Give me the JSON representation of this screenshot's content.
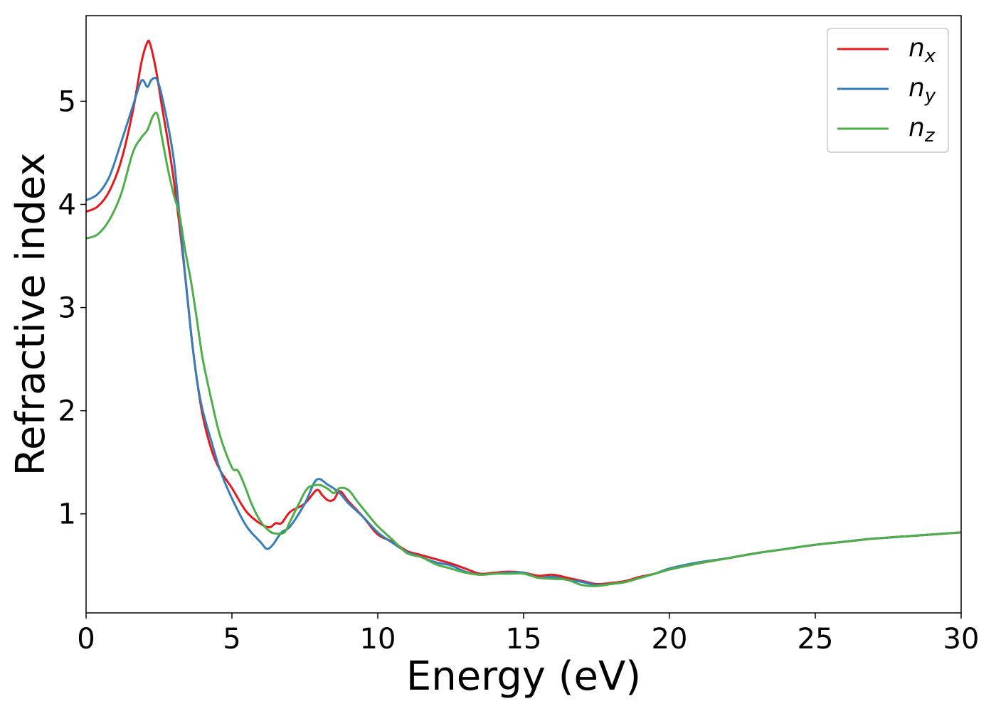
{
  "chart_data": {
    "type": "line",
    "title": "",
    "xlabel": "Energy (eV)",
    "ylabel": "Refractive index",
    "xlim": [
      0,
      30
    ],
    "ylim": [
      0.04,
      5.83
    ],
    "xticks": [
      0,
      5,
      10,
      15,
      20,
      25,
      30
    ],
    "yticks": [
      1,
      2,
      3,
      4,
      5
    ],
    "grid": false,
    "legend_position": "top-right",
    "series": [
      {
        "name": "n",
        "subscript": "x",
        "color": "#e41a1c",
        "x": [
          0,
          0.4,
          0.8,
          1.2,
          1.6,
          1.9,
          2.1,
          2.2,
          2.4,
          2.6,
          2.8,
          3.0,
          3.2,
          3.4,
          3.6,
          3.8,
          4.0,
          4.3,
          4.6,
          5.0,
          5.5,
          6.0,
          6.3,
          6.5,
          6.7,
          7.0,
          7.5,
          7.9,
          8.1,
          8.3,
          8.5,
          8.7,
          9.0,
          9.5,
          10.0,
          10.5,
          11.0,
          11.5,
          12.0,
          12.5,
          13.0,
          13.5,
          14.0,
          14.5,
          15.0,
          15.5,
          16.0,
          16.5,
          17.0,
          17.5,
          18.0,
          18.5,
          19.0,
          19.5,
          20,
          21,
          22,
          23,
          24,
          25,
          26,
          27,
          28,
          29,
          30
        ],
        "y": [
          3.93,
          3.98,
          4.13,
          4.42,
          4.9,
          5.38,
          5.57,
          5.55,
          5.3,
          4.95,
          4.62,
          4.25,
          3.8,
          3.3,
          2.75,
          2.3,
          1.95,
          1.62,
          1.42,
          1.25,
          1.02,
          0.9,
          0.87,
          0.91,
          0.91,
          1.02,
          1.1,
          1.23,
          1.18,
          1.13,
          1.14,
          1.22,
          1.12,
          0.97,
          0.8,
          0.73,
          0.64,
          0.6,
          0.56,
          0.52,
          0.47,
          0.42,
          0.43,
          0.44,
          0.43,
          0.4,
          0.41,
          0.38,
          0.35,
          0.32,
          0.33,
          0.35,
          0.39,
          0.42,
          0.46,
          0.52,
          0.57,
          0.62,
          0.66,
          0.7,
          0.73,
          0.76,
          0.78,
          0.8,
          0.82
        ]
      },
      {
        "name": "n",
        "subscript": "y",
        "color": "#377eb8",
        "x": [
          0,
          0.4,
          0.8,
          1.2,
          1.6,
          1.9,
          2.1,
          2.25,
          2.45,
          2.7,
          3.0,
          3.2,
          3.4,
          3.6,
          3.8,
          4.0,
          4.3,
          4.6,
          5.0,
          5.5,
          6.0,
          6.2,
          6.4,
          6.7,
          7.0,
          7.5,
          7.9,
          8.3,
          8.7,
          9.0,
          9.5,
          10.0,
          10.5,
          11.0,
          11.5,
          12.0,
          12.5,
          13.0,
          13.5,
          14.0,
          14.5,
          15.0,
          15.5,
          16.0,
          16.5,
          17.0,
          17.5,
          18.0,
          18.5,
          19.0,
          19.5,
          20,
          21,
          22,
          23,
          24,
          25,
          26,
          27,
          28,
          29,
          30
        ],
        "y": [
          4.04,
          4.1,
          4.27,
          4.6,
          4.95,
          5.2,
          5.14,
          5.21,
          5.2,
          4.92,
          4.45,
          3.9,
          3.3,
          2.75,
          2.3,
          2.0,
          1.7,
          1.42,
          1.15,
          0.88,
          0.72,
          0.66,
          0.7,
          0.82,
          0.88,
          1.1,
          1.33,
          1.28,
          1.2,
          1.1,
          0.97,
          0.82,
          0.72,
          0.63,
          0.58,
          0.53,
          0.5,
          0.44,
          0.41,
          0.42,
          0.43,
          0.43,
          0.38,
          0.39,
          0.36,
          0.34,
          0.31,
          0.32,
          0.34,
          0.38,
          0.42,
          0.47,
          0.53,
          0.57,
          0.62,
          0.66,
          0.7,
          0.73,
          0.76,
          0.78,
          0.8,
          0.82
        ]
      },
      {
        "name": "n",
        "subscript": "z",
        "color": "#4daf4a",
        "x": [
          0,
          0.4,
          0.8,
          1.2,
          1.6,
          1.9,
          2.1,
          2.3,
          2.45,
          2.6,
          2.8,
          3.0,
          3.2,
          3.4,
          3.6,
          3.8,
          4.0,
          4.3,
          4.6,
          5.0,
          5.2,
          5.4,
          5.7,
          6.0,
          6.3,
          6.5,
          6.8,
          7.0,
          7.3,
          7.6,
          8.0,
          8.3,
          8.5,
          8.7,
          9.0,
          9.3,
          9.7,
          10.0,
          10.5,
          11.0,
          11.5,
          12.0,
          12.5,
          13.0,
          13.5,
          14.0,
          14.5,
          15.0,
          15.5,
          16.0,
          16.5,
          17.0,
          17.5,
          18.0,
          18.5,
          19.0,
          19.5,
          20,
          21,
          22,
          23,
          24,
          25,
          26,
          27,
          28,
          29,
          30
        ],
        "y": [
          3.67,
          3.71,
          3.85,
          4.1,
          4.5,
          4.65,
          4.72,
          4.86,
          4.87,
          4.65,
          4.35,
          4.1,
          3.9,
          3.55,
          3.25,
          2.88,
          2.5,
          2.1,
          1.75,
          1.45,
          1.42,
          1.3,
          1.08,
          0.92,
          0.83,
          0.81,
          0.82,
          0.93,
          1.1,
          1.25,
          1.28,
          1.24,
          1.2,
          1.25,
          1.23,
          1.12,
          0.98,
          0.88,
          0.75,
          0.62,
          0.58,
          0.51,
          0.47,
          0.43,
          0.41,
          0.42,
          0.42,
          0.42,
          0.38,
          0.37,
          0.36,
          0.31,
          0.3,
          0.32,
          0.34,
          0.38,
          0.42,
          0.46,
          0.52,
          0.57,
          0.62,
          0.66,
          0.7,
          0.73,
          0.76,
          0.78,
          0.8,
          0.82
        ]
      }
    ]
  }
}
